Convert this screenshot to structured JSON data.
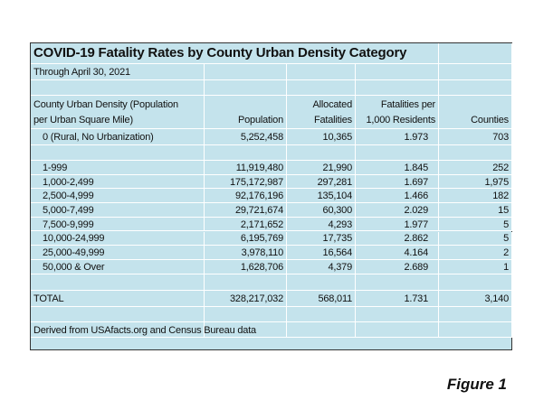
{
  "title": "COVID-19 Fatality Rates by County Urban Density Category",
  "subtitle": "Through April 30, 2021",
  "headers": [
    [
      "County Urban Density (Population",
      "per Urban Square Mile)"
    ],
    [
      "Population"
    ],
    [
      "Allocated",
      "Fatalities"
    ],
    [
      "Fatalities per",
      "1,000 Residents"
    ],
    [
      "Counties"
    ]
  ],
  "rural_row": [
    "0 (Rural, No Urbanization)",
    "5,252,458",
    "10,365",
    "1.973",
    "703"
  ],
  "rows": [
    [
      "1-999",
      "11,919,480",
      "21,990",
      "1.845",
      "252"
    ],
    [
      "1,000-2,499",
      "175,172,987",
      "297,281",
      "1.697",
      "1,975"
    ],
    [
      "2,500-4,999",
      "92,176,196",
      "135,104",
      "1.466",
      "182"
    ],
    [
      "5,000-7,499",
      "29,721,674",
      "60,300",
      "2.029",
      "15"
    ],
    [
      "7,500-9,999",
      "2,171,652",
      "4,293",
      "1.977",
      "5"
    ],
    [
      "10,000-24,999",
      "6,195,769",
      "17,735",
      "2.862",
      "5"
    ],
    [
      "25,000-49,999",
      "3,978,110",
      "16,564",
      "4.164",
      "2"
    ],
    [
      "50,000 & Over",
      "1,628,706",
      "4,379",
      "2.689",
      "1"
    ]
  ],
  "total_row": [
    "TOTAL",
    "328,217,032",
    "568,011",
    "1.731",
    "3,140"
  ],
  "source": "Derived from USAfacts.org and Census Bureau data",
  "figure_label": "Figure 1"
}
